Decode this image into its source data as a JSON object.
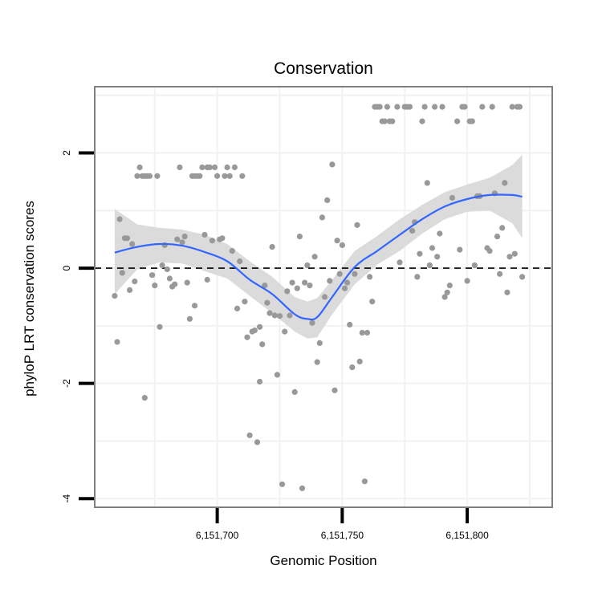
{
  "chart_data": {
    "type": "scatter",
    "title": "Conservation",
    "xlabel": "Genomic Position",
    "ylabel": "phyloP LRT conservation scores",
    "xlim": [
      6151651,
      6151834
    ],
    "ylim": [
      -4.15,
      3.15
    ],
    "x_ticks": [
      6151700,
      6151750,
      6151800
    ],
    "x_tick_labels": [
      "6,151,700",
      "6,151,750",
      "6,151,800"
    ],
    "y_ticks": [
      -4,
      -2,
      0,
      2
    ],
    "y_tick_labels": [
      "-4",
      "-2",
      "0",
      "2"
    ],
    "grid": true,
    "reference_line": {
      "y": 0,
      "style": "dashed"
    },
    "colors": {
      "points": "#999999",
      "smooth": "#3366FF",
      "band": "#d9d9d9",
      "panel_border": "#7f7f7f",
      "grid": "#f2f2f2"
    },
    "points": [
      [
        6151659,
        -0.48
      ],
      [
        6151660,
        -1.28
      ],
      [
        6151661,
        0.85
      ],
      [
        6151662,
        -0.08
      ],
      [
        6151663,
        0.52
      ],
      [
        6151664,
        0.52
      ],
      [
        6151665,
        -0.38
      ],
      [
        6151666,
        0.42
      ],
      [
        6151667,
        -0.23
      ],
      [
        6151668,
        1.6
      ],
      [
        6151669,
        1.75
      ],
      [
        6151670,
        1.6
      ],
      [
        6151671,
        -2.25
      ],
      [
        6151671,
        1.6
      ],
      [
        6151672,
        1.6
      ],
      [
        6151673,
        1.6
      ],
      [
        6151674,
        -0.12
      ],
      [
        6151675,
        -0.3
      ],
      [
        6151676,
        1.6
      ],
      [
        6151677,
        -1.02
      ],
      [
        6151678,
        0.05
      ],
      [
        6151679,
        0.4
      ],
      [
        6151680,
        -0.02
      ],
      [
        6151681,
        -0.18
      ],
      [
        6151682,
        -0.32
      ],
      [
        6151683,
        -0.28
      ],
      [
        6151684,
        0.5
      ],
      [
        6151685,
        1.75
      ],
      [
        6151686,
        0.45
      ],
      [
        6151687,
        0.55
      ],
      [
        6151688,
        -0.25
      ],
      [
        6151689,
        -0.88
      ],
      [
        6151690,
        1.6
      ],
      [
        6151691,
        -0.65
      ],
      [
        6151691,
        1.6
      ],
      [
        6151692,
        1.6
      ],
      [
        6151693,
        1.6
      ],
      [
        6151694,
        1.75
      ],
      [
        6151695,
        0.58
      ],
      [
        6151696,
        -0.2
      ],
      [
        6151696,
        1.75
      ],
      [
        6151697,
        1.75
      ],
      [
        6151698,
        0.48
      ],
      [
        6151699,
        1.75
      ],
      [
        6151700,
        1.6
      ],
      [
        6151701,
        0.5
      ],
      [
        6151702,
        0.52
      ],
      [
        6151703,
        1.6
      ],
      [
        6151704,
        1.75
      ],
      [
        6151705,
        1.6
      ],
      [
        6151706,
        0.3
      ],
      [
        6151707,
        1.75
      ],
      [
        6151708,
        -0.7
      ],
      [
        6151709,
        0.12
      ],
      [
        6151710,
        1.6
      ],
      [
        6151711,
        -0.58
      ],
      [
        6151712,
        -1.2
      ],
      [
        6151713,
        -2.9
      ],
      [
        6151714,
        -1.1
      ],
      [
        6151715,
        -1.08
      ],
      [
        6151716,
        -3.02
      ],
      [
        6151717,
        -1.97
      ],
      [
        6151717,
        -1.02
      ],
      [
        6151718,
        -1.32
      ],
      [
        6151719,
        -0.3
      ],
      [
        6151720,
        -0.6
      ],
      [
        6151721,
        -0.78
      ],
      [
        6151722,
        0.37
      ],
      [
        6151723,
        -0.82
      ],
      [
        6151724,
        -1.85
      ],
      [
        6151725,
        -0.83
      ],
      [
        6151726,
        -3.75
      ],
      [
        6151727,
        -1.1
      ],
      [
        6151728,
        -0.4
      ],
      [
        6151729,
        -0.82
      ],
      [
        6151730,
        -0.25
      ],
      [
        6151731,
        -2.15
      ],
      [
        6151732,
        -0.35
      ],
      [
        6151733,
        0.55
      ],
      [
        6151734,
        -3.82
      ],
      [
        6151735,
        -0.25
      ],
      [
        6151736,
        0.05
      ],
      [
        6151737,
        -0.3
      ],
      [
        6151738,
        -0.95
      ],
      [
        6151739,
        0.2
      ],
      [
        6151740,
        -1.63
      ],
      [
        6151741,
        -1.3
      ],
      [
        6151742,
        0.88
      ],
      [
        6151743,
        -0.5
      ],
      [
        6151744,
        1.18
      ],
      [
        6151745,
        -0.22
      ],
      [
        6151746,
        1.8
      ],
      [
        6151747,
        -2.12
      ],
      [
        6151748,
        0.48
      ],
      [
        6151749,
        -0.1
      ],
      [
        6151750,
        0.4
      ],
      [
        6151751,
        -0.35
      ],
      [
        6151752,
        -0.25
      ],
      [
        6151753,
        -0.98
      ],
      [
        6151754,
        -1.72
      ],
      [
        6151755,
        -0.1
      ],
      [
        6151756,
        0.75
      ],
      [
        6151757,
        -1.62
      ],
      [
        6151758,
        -1.12
      ],
      [
        6151759,
        -3.7
      ],
      [
        6151760,
        -1.12
      ],
      [
        6151761,
        -0.15
      ],
      [
        6151762,
        -0.58
      ],
      [
        6151763,
        2.8
      ],
      [
        6151764,
        2.8
      ],
      [
        6151765,
        2.8
      ],
      [
        6151766,
        2.55
      ],
      [
        6151767,
        2.55
      ],
      [
        6151768,
        2.8
      ],
      [
        6151769,
        2.55
      ],
      [
        6151770,
        2.55
      ],
      [
        6151772,
        2.8
      ],
      [
        6151773,
        0.1
      ],
      [
        6151775,
        2.8
      ],
      [
        6151776,
        2.8
      ],
      [
        6151777,
        2.8
      ],
      [
        6151778,
        0.65
      ],
      [
        6151779,
        0.8
      ],
      [
        6151780,
        -0.15
      ],
      [
        6151781,
        0.25
      ],
      [
        6151782,
        2.55
      ],
      [
        6151783,
        2.8
      ],
      [
        6151784,
        1.48
      ],
      [
        6151785,
        0.05
      ],
      [
        6151786,
        0.35
      ],
      [
        6151787,
        2.8
      ],
      [
        6151788,
        0.2
      ],
      [
        6151789,
        0.6
      ],
      [
        6151790,
        2.8
      ],
      [
        6151791,
        -0.5
      ],
      [
        6151792,
        -0.42
      ],
      [
        6151793,
        -0.3
      ],
      [
        6151794,
        1.22
      ],
      [
        6151796,
        2.55
      ],
      [
        6151797,
        0.32
      ],
      [
        6151798,
        2.8
      ],
      [
        6151799,
        2.8
      ],
      [
        6151800,
        -0.22
      ],
      [
        6151801,
        2.55
      ],
      [
        6151802,
        2.55
      ],
      [
        6151803,
        0.05
      ],
      [
        6151804,
        1.25
      ],
      [
        6151805,
        1.25
      ],
      [
        6151806,
        2.8
      ],
      [
        6151808,
        0.35
      ],
      [
        6151809,
        0.3
      ],
      [
        6151810,
        2.8
      ],
      [
        6151811,
        1.3
      ],
      [
        6151812,
        0.55
      ],
      [
        6151813,
        -0.1
      ],
      [
        6151814,
        0.7
      ],
      [
        6151815,
        1.48
      ],
      [
        6151816,
        -0.42
      ],
      [
        6151817,
        0.2
      ],
      [
        6151818,
        2.8
      ],
      [
        6151819,
        0.25
      ],
      [
        6151820,
        2.8
      ],
      [
        6151821,
        2.8
      ],
      [
        6151822,
        -0.15
      ]
    ],
    "smooth": {
      "x": [
        6151659,
        6151668,
        6151677,
        6151686,
        6151695,
        6151704,
        6151713,
        6151722,
        6151731,
        6151736,
        6151740,
        6151746,
        6151755,
        6151764,
        6151773,
        6151782,
        6151791,
        6151800,
        6151809,
        6151818,
        6151822
      ],
      "y": [
        0.27,
        0.37,
        0.42,
        0.39,
        0.28,
        0.12,
        -0.2,
        -0.45,
        -0.8,
        -0.88,
        -0.85,
        -0.5,
        0.02,
        0.3,
        0.58,
        0.85,
        1.07,
        1.2,
        1.27,
        1.27,
        1.24
      ],
      "lower": [
        -0.45,
        -0.02,
        0.1,
        0.08,
        -0.05,
        -0.18,
        -0.48,
        -0.78,
        -1.1,
        -1.22,
        -1.2,
        -0.8,
        -0.28,
        0.06,
        0.3,
        0.6,
        0.85,
        0.98,
        1.0,
        0.78,
        0.52
      ],
      "upper": [
        1.03,
        0.76,
        0.7,
        0.67,
        0.58,
        0.42,
        0.12,
        -0.15,
        -0.5,
        -0.58,
        -0.52,
        -0.2,
        0.3,
        0.56,
        0.85,
        1.1,
        1.32,
        1.45,
        1.57,
        1.79,
        1.97
      ]
    }
  }
}
